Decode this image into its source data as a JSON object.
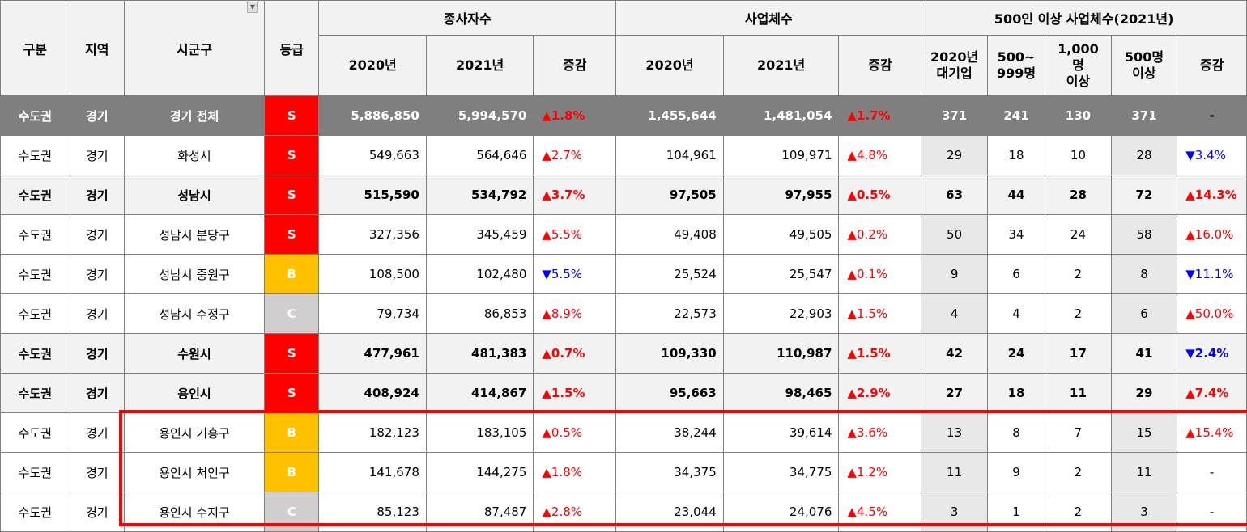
{
  "header": {
    "gubun": "구분",
    "region": "지역",
    "district": "시군구",
    "grade": "등급",
    "employees": "종사자수",
    "businesses": "사업체수",
    "large_biz": "500인 이상 사업체수(2021년)",
    "y2020": "2020년",
    "y2021": "2021년",
    "change": "증감",
    "lb_cols": [
      "2020년\n대기업",
      "500~\n999명",
      "1,000명\n이상",
      "500명\n이상",
      "증감"
    ]
  },
  "rows": [
    {
      "style": "total",
      "gubun": "수도권",
      "region": "경기",
      "district": "경기 전체",
      "grade": "S",
      "emp2020": "5,886,850",
      "emp2021": "5,994,570",
      "empChg": "▲1.8%",
      "empDir": "up",
      "biz2020": "1,455,644",
      "biz2021": "1,481,054",
      "bizChg": "▲1.7%",
      "bizDir": "up",
      "lb2020": "371",
      "lb500": "241",
      "lb1000": "130",
      "lb500p": "371",
      "lbChg": "-",
      "lbDir": "dash"
    },
    {
      "style": "normal",
      "gubun": "수도권",
      "region": "경기",
      "district": "화성시",
      "grade": "S",
      "emp2020": "549,663",
      "emp2021": "564,646",
      "empChg": "▲2.7%",
      "empDir": "up",
      "biz2020": "104,961",
      "biz2021": "109,971",
      "bizChg": "▲4.8%",
      "bizDir": "up",
      "lb2020": "29",
      "lb500": "18",
      "lb1000": "10",
      "lb500p": "28",
      "lbChg": "▼3.4%",
      "lbDir": "down"
    },
    {
      "style": "bold",
      "gubun": "수도권",
      "region": "경기",
      "district": "성남시",
      "grade": "S",
      "emp2020": "515,590",
      "emp2021": "534,792",
      "empChg": "▲3.7%",
      "empDir": "up",
      "biz2020": "97,505",
      "biz2021": "97,955",
      "bizChg": "▲0.5%",
      "bizDir": "up",
      "lb2020": "63",
      "lb500": "44",
      "lb1000": "28",
      "lb500p": "72",
      "lbChg": "▲14.3%",
      "lbDir": "up"
    },
    {
      "style": "normal",
      "gubun": "수도권",
      "region": "경기",
      "district": "성남시 분당구",
      "grade": "S",
      "emp2020": "327,356",
      "emp2021": "345,459",
      "empChg": "▲5.5%",
      "empDir": "up",
      "biz2020": "49,408",
      "biz2021": "49,505",
      "bizChg": "▲0.2%",
      "bizDir": "up",
      "lb2020": "50",
      "lb500": "34",
      "lb1000": "24",
      "lb500p": "58",
      "lbChg": "▲16.0%",
      "lbDir": "up"
    },
    {
      "style": "normal",
      "gubun": "수도권",
      "region": "경기",
      "district": "성남시 중원구",
      "grade": "B",
      "emp2020": "108,500",
      "emp2021": "102,480",
      "empChg": "▼5.5%",
      "empDir": "down",
      "biz2020": "25,524",
      "biz2021": "25,547",
      "bizChg": "▲0.1%",
      "bizDir": "up",
      "lb2020": "9",
      "lb500": "6",
      "lb1000": "2",
      "lb500p": "8",
      "lbChg": "▼11.1%",
      "lbDir": "down"
    },
    {
      "style": "normal",
      "gubun": "수도권",
      "region": "경기",
      "district": "성남시 수정구",
      "grade": "C",
      "emp2020": "79,734",
      "emp2021": "86,853",
      "empChg": "▲8.9%",
      "empDir": "up",
      "biz2020": "22,573",
      "biz2021": "22,903",
      "bizChg": "▲1.5%",
      "bizDir": "up",
      "lb2020": "4",
      "lb500": "4",
      "lb1000": "2",
      "lb500p": "6",
      "lbChg": "▲50.0%",
      "lbDir": "up"
    },
    {
      "style": "bold",
      "gubun": "수도권",
      "region": "경기",
      "district": "수원시",
      "grade": "S",
      "emp2020": "477,961",
      "emp2021": "481,383",
      "empChg": "▲0.7%",
      "empDir": "up",
      "biz2020": "109,330",
      "biz2021": "110,987",
      "bizChg": "▲1.5%",
      "bizDir": "up",
      "lb2020": "42",
      "lb500": "24",
      "lb1000": "17",
      "lb500p": "41",
      "lbChg": "▼2.4%",
      "lbDir": "down"
    },
    {
      "style": "bold",
      "gubun": "수도권",
      "region": "경기",
      "district": "용인시",
      "grade": "S",
      "emp2020": "408,924",
      "emp2021": "414,867",
      "empChg": "▲1.5%",
      "empDir": "up",
      "biz2020": "95,663",
      "biz2021": "98,465",
      "bizChg": "▲2.9%",
      "bizDir": "up",
      "lb2020": "27",
      "lb500": "18",
      "lb1000": "11",
      "lb500p": "29",
      "lbChg": "▲7.4%",
      "lbDir": "up"
    },
    {
      "style": "normal",
      "gubun": "수도권",
      "region": "경기",
      "district": "용인시 기흥구",
      "grade": "B",
      "emp2020": "182,123",
      "emp2021": "183,105",
      "empChg": "▲0.5%",
      "empDir": "up",
      "biz2020": "38,244",
      "biz2021": "39,614",
      "bizChg": "▲3.6%",
      "bizDir": "up",
      "lb2020": "13",
      "lb500": "8",
      "lb1000": "7",
      "lb500p": "15",
      "lbChg": "▲15.4%",
      "lbDir": "up"
    },
    {
      "style": "normal",
      "gubun": "수도권",
      "region": "경기",
      "district": "용인시 처인구",
      "grade": "B",
      "emp2020": "141,678",
      "emp2021": "144,275",
      "empChg": "▲1.8%",
      "empDir": "up",
      "biz2020": "34,375",
      "biz2021": "34,775",
      "bizChg": "▲1.2%",
      "bizDir": "up",
      "lb2020": "11",
      "lb500": "9",
      "lb1000": "2",
      "lb500p": "11",
      "lbChg": "-",
      "lbDir": "dash"
    },
    {
      "style": "normal",
      "gubun": "수도권",
      "region": "경기",
      "district": "용인시 수지구",
      "grade": "C",
      "emp2020": "85,123",
      "emp2021": "87,487",
      "empChg": "▲2.8%",
      "empDir": "up",
      "biz2020": "23,044",
      "biz2021": "24,076",
      "bizChg": "▲4.5%",
      "bizDir": "up",
      "lb2020": "3",
      "lb500": "1",
      "lb1000": "2",
      "lb500p": "3",
      "lbChg": "-",
      "lbDir": "dash"
    }
  ],
  "colors": {
    "grade_S": "#ff0000",
    "grade_B": "#ffc000",
    "grade_C": "#d0cece",
    "up": "#ff0000",
    "down": "#0000ff",
    "highlight": "#ff0000"
  }
}
